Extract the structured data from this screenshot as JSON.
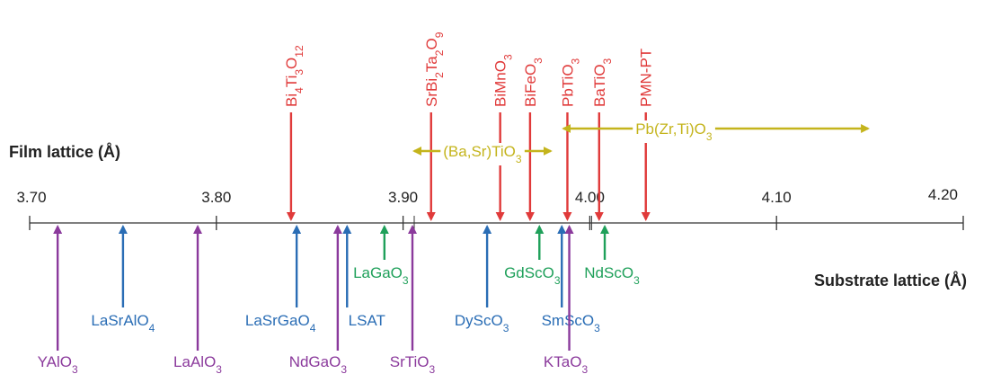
{
  "colors": {
    "axis": "#333333",
    "film": "#e03a3a",
    "range": "#c4b41c",
    "blue": "#2a6db5",
    "green": "#1fa05a",
    "purple": "#8b3a9c"
  },
  "axis": {
    "film_label": "Film lattice (Å)",
    "substrate_label": "Substrate lattice (Å)",
    "range": [
      3.7,
      4.2
    ],
    "ticks": [
      {
        "value": 3.7,
        "label": "3.70"
      },
      {
        "value": 3.8,
        "label": "3.80"
      },
      {
        "value": 3.9,
        "label": "3.90"
      },
      {
        "value": 4.0,
        "label": "4.00"
      },
      {
        "value": 4.1,
        "label": "4.10"
      },
      {
        "value": 4.2,
        "label": "4.20"
      }
    ]
  },
  "film_materials": [
    {
      "id": "bi4ti3o12",
      "value": 3.84,
      "parts": [
        [
          "Bi",
          ""
        ],
        [
          "4",
          "s"
        ],
        [
          "Ti",
          ""
        ],
        [
          "3",
          "s"
        ],
        [
          "O",
          ""
        ],
        [
          "12",
          "s"
        ]
      ]
    },
    {
      "id": "srbi2ta2o9",
      "value": 3.915,
      "parts": [
        [
          "SrBi",
          ""
        ],
        [
          "2",
          "s"
        ],
        [
          "Ta",
          ""
        ],
        [
          "2",
          "s"
        ],
        [
          "O",
          ""
        ],
        [
          "9",
          "s"
        ]
      ]
    },
    {
      "id": "bimno3",
      "value": 3.952,
      "parts": [
        [
          "BiMnO",
          ""
        ],
        [
          "3",
          "s"
        ]
      ]
    },
    {
      "id": "bifeo3",
      "value": 3.968,
      "parts": [
        [
          "BiFeO",
          ""
        ],
        [
          "3",
          "s"
        ]
      ]
    },
    {
      "id": "pbtio3",
      "value": 3.988,
      "parts": [
        [
          "PbTiO",
          ""
        ],
        [
          "3",
          "s"
        ]
      ]
    },
    {
      "id": "batio3",
      "value": 4.005,
      "parts": [
        [
          "BaTiO",
          ""
        ],
        [
          "3",
          "s"
        ]
      ]
    },
    {
      "id": "pmn-pt",
      "value": 4.03,
      "parts": [
        [
          "PMN-PT",
          ""
        ]
      ]
    }
  ],
  "film_ranges": [
    {
      "id": "basr-tio3",
      "from": 3.905,
      "to": 3.98,
      "parts": [
        [
          "(Ba,Sr)TiO",
          ""
        ],
        [
          "3",
          "s"
        ]
      ]
    },
    {
      "id": "pb-zrti-o3",
      "from": 3.985,
      "to": 4.15,
      "parts": [
        [
          "Pb(Zr,Ti)O",
          ""
        ],
        [
          "3",
          "s"
        ]
      ]
    }
  ],
  "substrates": [
    {
      "id": "yalo3",
      "value": 3.715,
      "color": "purple",
      "tier": 3,
      "parts": [
        [
          "YAlO",
          ""
        ],
        [
          "3",
          "s"
        ]
      ]
    },
    {
      "id": "lasralo4",
      "value": 3.75,
      "color": "blue",
      "tier": 2,
      "parts": [
        [
          "LaSrAlO",
          ""
        ],
        [
          "4",
          "s"
        ]
      ]
    },
    {
      "id": "laalo3",
      "value": 3.79,
      "color": "purple",
      "tier": 3,
      "parts": [
        [
          "LaAlO",
          ""
        ],
        [
          "3",
          "s"
        ]
      ]
    },
    {
      "id": "lasrgao4",
      "value": 3.843,
      "color": "blue",
      "tier": 2,
      "parts": [
        [
          "LaSrGaO",
          ""
        ],
        [
          "4",
          "s"
        ]
      ]
    },
    {
      "id": "ndgao3",
      "value": 3.865,
      "color": "purple",
      "tier": 3,
      "parts": [
        [
          "NdGaO",
          ""
        ],
        [
          "3",
          "s"
        ]
      ]
    },
    {
      "id": "lsat",
      "value": 3.87,
      "color": "blue",
      "tier": 2,
      "parts": [
        [
          "LSAT",
          ""
        ]
      ]
    },
    {
      "id": "lagao3",
      "value": 3.89,
      "color": "green",
      "tier": 1,
      "parts": [
        [
          "LaGaO",
          ""
        ],
        [
          "3",
          "s"
        ]
      ]
    },
    {
      "id": "srtio3",
      "value": 3.905,
      "color": "purple",
      "tier": 3,
      "parts": [
        [
          "SrTiO",
          ""
        ],
        [
          "3",
          "s"
        ]
      ]
    },
    {
      "id": "dysco3",
      "value": 3.945,
      "color": "blue",
      "tier": 2,
      "parts": [
        [
          "DyScO",
          ""
        ],
        [
          "3",
          "s"
        ]
      ]
    },
    {
      "id": "gdsco3",
      "value": 3.973,
      "color": "green",
      "tier": 1,
      "parts": [
        [
          "GdScO",
          ""
        ],
        [
          "3",
          "s"
        ]
      ]
    },
    {
      "id": "smsco3",
      "value": 3.985,
      "color": "blue",
      "tier": 2,
      "parts": [
        [
          "SmScO",
          ""
        ],
        [
          "3",
          "s"
        ]
      ]
    },
    {
      "id": "ktao3",
      "value": 3.989,
      "color": "purple",
      "tier": 3,
      "parts": [
        [
          "KTaO",
          ""
        ],
        [
          "3",
          "s"
        ]
      ]
    },
    {
      "id": "ndsco3",
      "value": 4.008,
      "color": "green",
      "tier": 1,
      "parts": [
        [
          "NdScO",
          ""
        ],
        [
          "3",
          "s"
        ]
      ]
    }
  ]
}
